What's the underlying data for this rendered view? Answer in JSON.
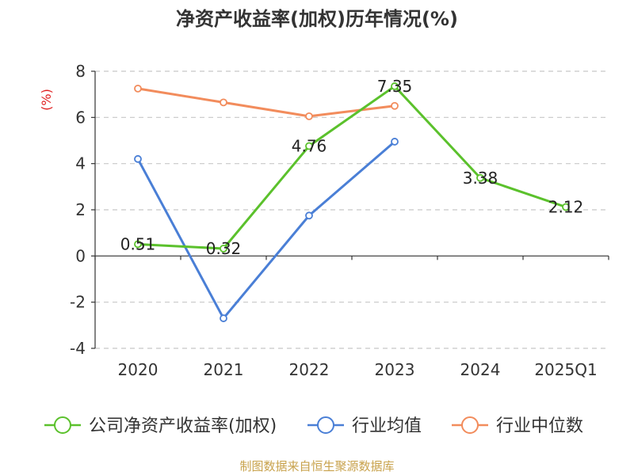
{
  "title": "净资产收益率(加权)历年情况(%)",
  "source": "制图数据来自恒生聚源数据库",
  "chart_data": {
    "type": "line",
    "title": "净资产收益率(加权)历年情况(%)",
    "ylabel": "(%)",
    "categories": [
      "2020",
      "2021",
      "2022",
      "2023",
      "2024",
      "2025Q1"
    ],
    "ylim": [
      -4,
      8
    ],
    "yticks": [
      -4,
      -2,
      0,
      2,
      4,
      6,
      8
    ],
    "grid": true,
    "legend": "bottom",
    "series": [
      {
        "name": "公司净资产收益率(加权)",
        "color": "#5bc12c",
        "values": [
          0.51,
          0.32,
          4.76,
          7.35,
          3.38,
          2.12
        ],
        "labels": [
          "0.51",
          "0.32",
          "4.76",
          "7.35",
          "3.38",
          "2.12"
        ]
      },
      {
        "name": "行业均值",
        "color": "#4a7fd6",
        "values": [
          4.2,
          -2.7,
          1.75,
          4.95,
          null,
          null
        ]
      },
      {
        "name": "行业中位数",
        "color": "#f28c5c",
        "values": [
          7.25,
          6.65,
          6.05,
          6.5,
          null,
          null
        ]
      }
    ]
  }
}
